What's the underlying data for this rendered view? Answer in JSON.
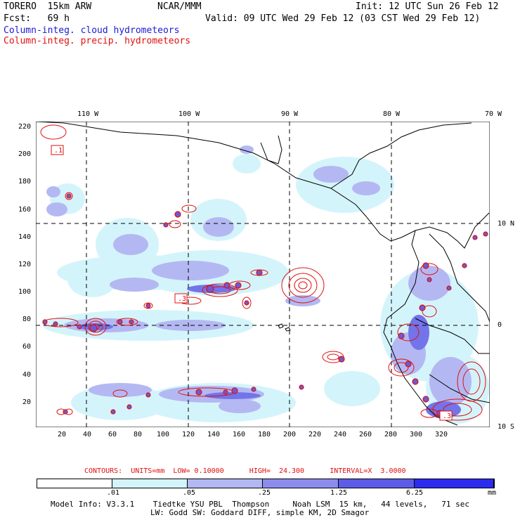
{
  "header": {
    "model": "TORERO  15km ARW",
    "org": "NCAR/MMM",
    "init": "Init: 12 UTC Sun 26 Feb 12",
    "fcst": "Fcst:   69 h",
    "valid": "Valid: 09 UTC Wed 29 Feb 12 (03 CST Wed 29 Feb 12)",
    "legend_cloud": "Column-integ. cloud hydrometeors",
    "legend_precip": "Column-integ. precip. hydrometeors"
  },
  "map": {
    "lon_labels": [
      "110 W",
      "100 W",
      "90 W",
      "80 W",
      "70 W"
    ],
    "lat_labels": [
      "10 N",
      "0",
      "10 S"
    ],
    "y_ticks": [
      "220",
      "200",
      "180",
      "160",
      "140",
      "120",
      "100",
      "80",
      "60",
      "40",
      "20"
    ],
    "x_ticks": [
      "20",
      "40",
      "60",
      "80",
      "100",
      "120",
      "140",
      "160",
      "180",
      "200",
      "220",
      "240",
      "260",
      "280",
      "300",
      "320"
    ],
    "contour_labels": [
      ".1",
      ".1",
      ".3",
      ".3"
    ]
  },
  "contours_info": {
    "text": "CONTOURS:  UNITS=mm  LOW= 0.10000      HIGH=  24.300      INTERVAL=X  3.0000"
  },
  "colorbar": {
    "labels": [
      ".01",
      ".05",
      ".25",
      "1.25",
      "6.25",
      "mm"
    ],
    "colors": [
      "#ffffff",
      "#d4f4fb",
      "#b4b8f2",
      "#8c8cee",
      "#5c5ce8",
      "#2c2cf0"
    ]
  },
  "footer": {
    "line1": "Model Info: V3.3.1    Tiedtke YSU PBL  Thompson     Noah LSM  15 km,   44 levels,   71 sec",
    "line2": "LW: Godd SW: Goddard DIFF, simple KM, 2D Smagor"
  }
}
